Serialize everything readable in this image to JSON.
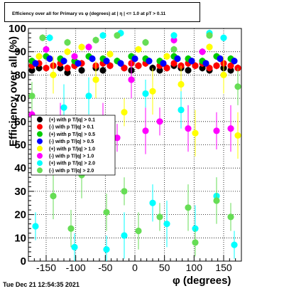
{
  "header": {
    "title": "Efficiency over all for Primary vs φ (degrees) at | η | <= 1.0 at pT > 0.11",
    "timestamp": "Tue Dec 21 12:54:35 2021"
  },
  "chart_data": {
    "type": "scatter",
    "title": "Efficiency over all for Primary vs φ (degrees) at | η | <= 1.0 at pT > 0.11",
    "xlabel": "φ (degrees)",
    "ylabel": "Efficiency over all (%)",
    "xlim": [
      -180,
      180
    ],
    "ylim": [
      0,
      100
    ],
    "x_ticks": [
      -150,
      -100,
      -50,
      0,
      50,
      100,
      150
    ],
    "y_ticks": [
      0,
      10,
      20,
      30,
      40,
      50,
      60,
      70,
      80,
      90,
      100
    ],
    "grid": true,
    "legend_position": "left-center",
    "series": [
      {
        "name": "(+) with p T/|q| > 0.1",
        "color": "#000000",
        "x": [
          -174,
          -162,
          -138,
          -126,
          -114,
          -102,
          -90,
          -66,
          -54,
          -42,
          -18,
          -6,
          6,
          30,
          42,
          54,
          66,
          78,
          90,
          102,
          114,
          126,
          138,
          150,
          162,
          174
        ],
        "values": [
          82,
          83,
          84,
          83,
          81,
          84,
          82,
          83,
          82,
          84,
          83,
          82,
          84,
          83,
          82,
          83,
          84,
          83,
          82,
          84,
          83,
          82,
          84,
          83,
          82,
          83
        ]
      },
      {
        "name": "(-) with p T/|q| > 0.1",
        "color": "#ff0000",
        "x": [
          -174,
          -162,
          -150,
          -138,
          -126,
          -114,
          -102,
          -90,
          -66,
          -54,
          -42,
          -18,
          -6,
          6,
          18,
          42,
          54,
          66,
          78,
          90,
          102,
          114,
          126,
          138,
          150,
          162,
          174
        ],
        "values": [
          84,
          85,
          83,
          84,
          85,
          83,
          84,
          85,
          84,
          85,
          84,
          83,
          85,
          84,
          85,
          84,
          83,
          85,
          84,
          85,
          84,
          85,
          83,
          84,
          85,
          84,
          83
        ]
      },
      {
        "name": "(+) with p T/|q| > 0.5",
        "color": "#00cc00",
        "x": [
          -174,
          -150,
          -126,
          -102,
          -78,
          -54,
          -30,
          -6,
          18,
          42,
          66,
          90,
          114,
          138,
          162
        ],
        "values": [
          86,
          88,
          87,
          86,
          88,
          87,
          86,
          88,
          87,
          86,
          88,
          87,
          86,
          88,
          87
        ]
      },
      {
        "name": "(-) with p T/|q| > 0.5",
        "color": "#0000ff",
        "x": [
          -168,
          -144,
          -120,
          -96,
          -72,
          -48,
          -24,
          0,
          24,
          48,
          72,
          96,
          120,
          144,
          168
        ],
        "values": [
          85,
          87,
          86,
          85,
          87,
          86,
          85,
          87,
          86,
          85,
          87,
          86,
          85,
          87,
          86
        ]
      },
      {
        "name": "(+) with p T/|q| > 1.0",
        "color": "#ffff00",
        "x": [
          -162,
          -138,
          -114,
          -90,
          -66,
          -42,
          -18,
          6,
          30,
          54,
          78,
          102,
          126,
          150,
          174
        ],
        "values": [
          88,
          80,
          90,
          92,
          78,
          89,
          64,
          91,
          73,
          88,
          76,
          55,
          92,
          80,
          54
        ]
      },
      {
        "name": "(-) with p T/|q| > 1.0",
        "color": "#ff00ff",
        "x": [
          -174,
          -150,
          -126,
          -102,
          -78,
          -54,
          -30,
          -6,
          18,
          42,
          66,
          90,
          114,
          138,
          162
        ],
        "values": [
          63,
          91,
          58,
          88,
          92,
          58,
          53,
          78,
          56,
          60,
          95,
          57,
          90,
          56,
          57
        ]
      },
      {
        "name": "(+) with p T/|q| > 2.0",
        "color": "#00ffff",
        "x": [
          -168,
          -144,
          -120,
          -102,
          -78,
          -54,
          -48,
          -24,
          -18,
          18,
          30,
          54,
          66,
          78,
          102,
          126,
          138,
          150,
          168
        ],
        "values": [
          15,
          96,
          66,
          6,
          71,
          97,
          5,
          98,
          11,
          72,
          25,
          16,
          97,
          65,
          14,
          98,
          28,
          96,
          7
        ]
      },
      {
        "name": "(-) with p T/|q| > 2.0",
        "color": "#66dd55",
        "x": [
          -174,
          -156,
          -138,
          -114,
          -108,
          -90,
          -66,
          -48,
          -30,
          -18,
          6,
          18,
          42,
          66,
          90,
          102,
          126,
          138,
          162,
          174
        ],
        "values": [
          71,
          96,
          28,
          94,
          14,
          37,
          95,
          21,
          97,
          30,
          13,
          94,
          19,
          91,
          23,
          8,
          97,
          26,
          19,
          75
        ]
      }
    ]
  }
}
